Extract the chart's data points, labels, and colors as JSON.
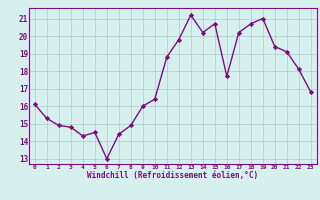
{
  "x": [
    0,
    1,
    2,
    3,
    4,
    5,
    6,
    7,
    8,
    9,
    10,
    11,
    12,
    13,
    14,
    15,
    16,
    17,
    18,
    19,
    20,
    21,
    22,
    23
  ],
  "y": [
    16.1,
    15.3,
    14.9,
    14.8,
    14.3,
    14.5,
    13.0,
    14.4,
    14.9,
    16.0,
    16.4,
    18.8,
    19.8,
    21.2,
    20.2,
    20.7,
    17.7,
    20.2,
    20.7,
    21.0,
    19.4,
    19.1,
    18.1,
    16.8
  ],
  "line_color": "#7B0E7B",
  "marker": "D",
  "marker_size": 2.2,
  "line_width": 1.0,
  "bg_color": "#d6f0ee",
  "grid_color": "#b0c8c8",
  "xlabel": "Windchill (Refroidissement éolien,°C)",
  "xlabel_color": "#7B0E7B",
  "tick_color": "#7B0E7B",
  "ylim": [
    12.7,
    21.6
  ],
  "xlim": [
    -0.5,
    23.5
  ],
  "yticks": [
    13,
    14,
    15,
    16,
    17,
    18,
    19,
    20,
    21
  ],
  "xticks": [
    0,
    1,
    2,
    3,
    4,
    5,
    6,
    7,
    8,
    9,
    10,
    11,
    12,
    13,
    14,
    15,
    16,
    17,
    18,
    19,
    20,
    21,
    22,
    23
  ],
  "xtick_labels": [
    "0",
    "1",
    "2",
    "3",
    "4",
    "5",
    "6",
    "7",
    "8",
    "9",
    "10",
    "11",
    "12",
    "13",
    "14",
    "15",
    "16",
    "17",
    "18",
    "19",
    "20",
    "21",
    "22",
    "23"
  ]
}
